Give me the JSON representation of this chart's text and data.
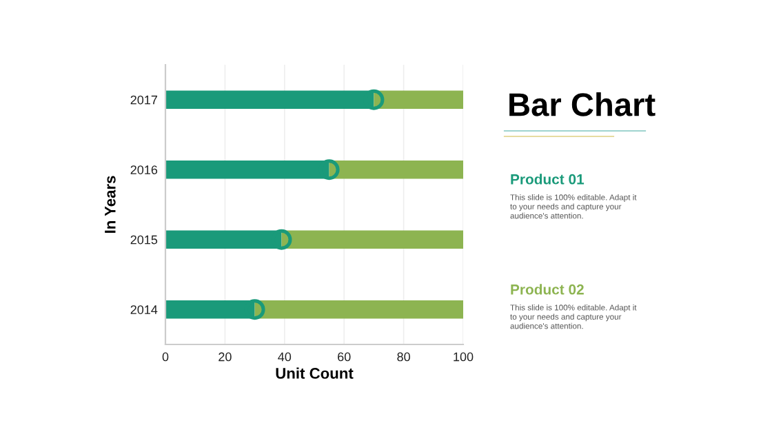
{
  "chart_data": {
    "type": "bar",
    "orientation": "horizontal",
    "stacked": true,
    "title": "Bar Chart",
    "xlabel": "Unit Count",
    "ylabel": "In Years",
    "categories": [
      "2017",
      "2016",
      "2015",
      "2014"
    ],
    "series": [
      {
        "name": "Product 01",
        "color": "#1a9a7a",
        "values": [
          70,
          55,
          39,
          30
        ]
      },
      {
        "name": "Product 02",
        "color": "#8db451",
        "values": [
          30,
          45,
          61,
          70
        ]
      }
    ],
    "xlim": [
      0,
      100
    ],
    "xticks": [
      0,
      20,
      40,
      60,
      80,
      100
    ],
    "grid": "x",
    "legend": "right",
    "annotations": [
      "This slide is 100% editable. Adapt it\nto your needs and capture your\naudience's attention.",
      "This slide is 100% editable. Adapt it\nto your needs and capture your\naudience's attention."
    ]
  }
}
